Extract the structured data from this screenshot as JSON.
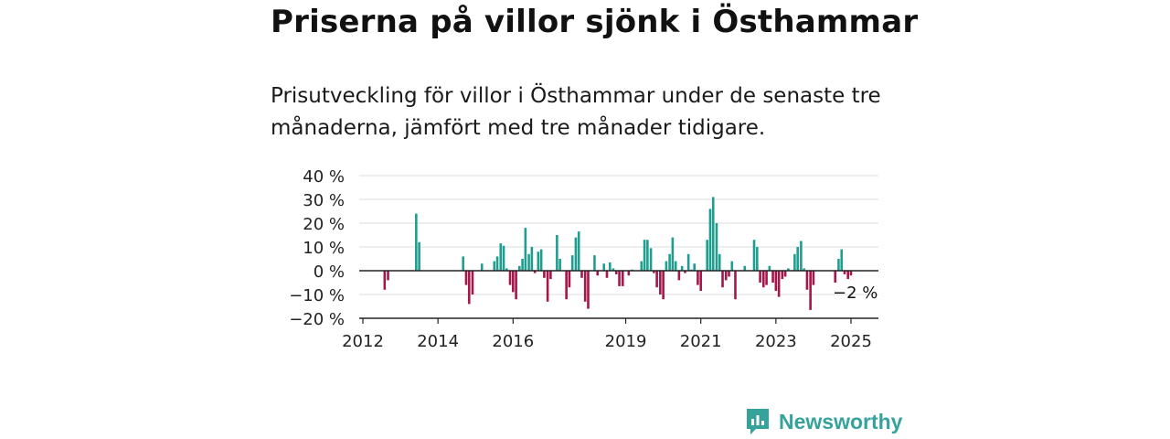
{
  "header": {
    "title": "Priserna på villor sjönk i Östhammar",
    "subtitle": "Prisutveckling för villor i Östhammar under de senaste tre månaderna, jämfört med tre månader tidigare."
  },
  "brand": {
    "name": "Newsworthy",
    "color": "#35a39c"
  },
  "colors": {
    "positive": "#1f9e8f",
    "negative": "#a3174a",
    "grid": "#dddddd",
    "axis": "#222222"
  },
  "chart_data": {
    "type": "bar",
    "title": "Priserna på villor sjönk i Östhammar",
    "xlabel": "",
    "ylabel": "",
    "ylim": [
      -20,
      40
    ],
    "y_ticks": [
      40,
      30,
      20,
      10,
      0,
      -10,
      -20
    ],
    "y_tick_labels": [
      "40 %",
      "30 %",
      "20 %",
      "10 %",
      "0 %",
      "−10 %",
      "−20 %"
    ],
    "x_ticks": [
      2012,
      2014,
      2016,
      2019,
      2021,
      2023,
      2025
    ],
    "x_tick_labels": [
      "2012",
      "2014",
      "2016",
      "2019",
      "2021",
      "2023",
      "2025"
    ],
    "xlim": [
      2012,
      2025.75
    ],
    "grid": true,
    "annotation": {
      "text": "−2 %",
      "x": 2025.0,
      "y": -2
    },
    "series": [
      {
        "points": [
          [
            2012.58,
            -8
          ],
          [
            2012.67,
            -4
          ],
          [
            2013.42,
            24
          ],
          [
            2013.5,
            12
          ],
          [
            2014.67,
            6
          ],
          [
            2014.75,
            -6
          ],
          [
            2014.83,
            -14
          ],
          [
            2014.92,
            -10
          ],
          [
            2015.17,
            3
          ],
          [
            2015.5,
            4
          ],
          [
            2015.58,
            6
          ],
          [
            2015.67,
            11.5
          ],
          [
            2015.75,
            10.5
          ],
          [
            2015.83,
            1
          ],
          [
            2015.92,
            -6
          ],
          [
            2016.0,
            -9
          ],
          [
            2016.08,
            -12
          ],
          [
            2016.17,
            2
          ],
          [
            2016.25,
            5
          ],
          [
            2016.33,
            18
          ],
          [
            2016.42,
            7
          ],
          [
            2016.5,
            10
          ],
          [
            2016.58,
            -1
          ],
          [
            2016.67,
            8
          ],
          [
            2016.75,
            9
          ],
          [
            2016.83,
            -3
          ],
          [
            2016.92,
            -13
          ],
          [
            2017.0,
            -3.5
          ],
          [
            2017.17,
            15
          ],
          [
            2017.25,
            5
          ],
          [
            2017.42,
            -12
          ],
          [
            2017.5,
            -7
          ],
          [
            2017.58,
            6.5
          ],
          [
            2017.67,
            14
          ],
          [
            2017.75,
            16.5
          ],
          [
            2017.83,
            -3
          ],
          [
            2017.92,
            -13
          ],
          [
            2018.0,
            -16
          ],
          [
            2018.17,
            6.5
          ],
          [
            2018.25,
            -2
          ],
          [
            2018.42,
            3
          ],
          [
            2018.5,
            -3
          ],
          [
            2018.58,
            3.5
          ],
          [
            2018.67,
            1
          ],
          [
            2018.75,
            -1.5
          ],
          [
            2018.83,
            -6.5
          ],
          [
            2018.92,
            -6.5
          ],
          [
            2019.08,
            -2
          ],
          [
            2019.17,
            0.5
          ],
          [
            2019.42,
            4
          ],
          [
            2019.5,
            13
          ],
          [
            2019.58,
            13
          ],
          [
            2019.67,
            9.5
          ],
          [
            2019.75,
            -1
          ],
          [
            2019.83,
            -7
          ],
          [
            2019.92,
            -10
          ],
          [
            2020.0,
            -12
          ],
          [
            2020.08,
            4
          ],
          [
            2020.17,
            7
          ],
          [
            2020.25,
            14
          ],
          [
            2020.33,
            4
          ],
          [
            2020.42,
            -4
          ],
          [
            2020.5,
            2
          ],
          [
            2020.58,
            -1
          ],
          [
            2020.67,
            7
          ],
          [
            2020.75,
            0.5
          ],
          [
            2020.83,
            3
          ],
          [
            2020.92,
            -6
          ],
          [
            2021.0,
            -8.5
          ],
          [
            2021.17,
            13
          ],
          [
            2021.25,
            26
          ],
          [
            2021.33,
            31
          ],
          [
            2021.42,
            20
          ],
          [
            2021.5,
            7
          ],
          [
            2021.58,
            -7
          ],
          [
            2021.67,
            -4
          ],
          [
            2021.75,
            -2.5
          ],
          [
            2021.83,
            4
          ],
          [
            2021.92,
            -12
          ],
          [
            2022.17,
            2
          ],
          [
            2022.42,
            13
          ],
          [
            2022.5,
            10
          ],
          [
            2022.58,
            -5
          ],
          [
            2022.67,
            -7
          ],
          [
            2022.75,
            -6
          ],
          [
            2022.83,
            2
          ],
          [
            2022.92,
            -5
          ],
          [
            2023.0,
            -8.5
          ],
          [
            2023.08,
            -11
          ],
          [
            2023.17,
            -3.5
          ],
          [
            2023.25,
            -2.5
          ],
          [
            2023.33,
            1
          ],
          [
            2023.5,
            7
          ],
          [
            2023.58,
            10
          ],
          [
            2023.67,
            12.5
          ],
          [
            2023.75,
            1
          ],
          [
            2023.83,
            -8
          ],
          [
            2023.92,
            -16.5
          ],
          [
            2024.0,
            -6
          ],
          [
            2024.58,
            -5
          ],
          [
            2024.67,
            5
          ],
          [
            2024.75,
            9
          ],
          [
            2024.83,
            -1.5
          ],
          [
            2024.92,
            -3.5
          ],
          [
            2025.0,
            -2
          ]
        ]
      }
    ]
  }
}
